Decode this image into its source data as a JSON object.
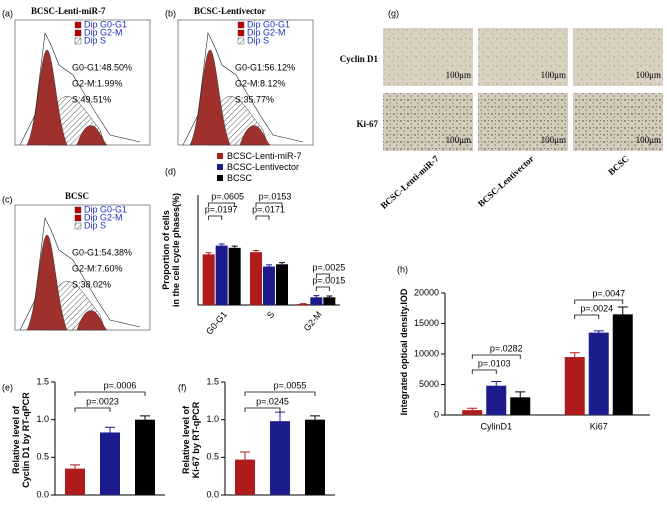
{
  "panels": [
    "(a)",
    "(b)",
    "(c)",
    "(d)",
    "(e)",
    "(f)",
    "(g)",
    "(h)"
  ],
  "histograms": [
    {
      "title": "BCSC-Lenti-miR-7",
      "legend": [
        "Dip G0-G1",
        "Dip G2-M",
        "Dip S"
      ],
      "stats": [
        "G0-G1:48.50%",
        "G2-M:1.99%",
        "S:49.51%"
      ]
    },
    {
      "title": "BCSC-Lentivector",
      "legend": [
        "Dip G0-G1",
        "Dip G2-M",
        "Dip S"
      ],
      "stats": [
        "G0-G1:56.12%",
        "G2-M:8.12%",
        "S:35.77%"
      ]
    },
    {
      "title": "BCSC",
      "legend": [
        "Dip G0-G1",
        "Dip G2-M",
        "Dip S"
      ],
      "stats": [
        "G0-G1:54.38%",
        "G2-M:7.60%",
        "S:38.02%"
      ]
    }
  ],
  "images": {
    "rows": [
      "Cyclin D1",
      "Ki-67"
    ],
    "columns": [
      "BCSC-Lenti-miR-7",
      "BCSC-Lentivector",
      "BCSC"
    ],
    "scale_label": "100μm"
  },
  "chart_data": [
    {
      "type": "bar",
      "ylabel": "Proportion of cells\nin the cell cycle phases(%)",
      "categories": [
        "G0-G1",
        "S",
        "G2-M"
      ],
      "series": [
        {
          "name": "BCSC-Lenti-miR-7",
          "color": "#b01c1c",
          "values": [
            46,
            48,
            1
          ],
          "errors": [
            1.5,
            1.5,
            0.3
          ]
        },
        {
          "name": "BCSC-Lentivector",
          "color": "#1c1c8c",
          "values": [
            54,
            35,
            7
          ],
          "errors": [
            1.5,
            1.5,
            1.5
          ]
        },
        {
          "name": "BCSC",
          "color": "#000000",
          "values": [
            52,
            37,
            7
          ],
          "errors": [
            1.5,
            1.5,
            1.2
          ]
        }
      ],
      "ylim": [
        0,
        100
      ],
      "legend": "top",
      "annotations": [
        "p=.0605",
        "p=.0197",
        "p=.0153",
        "p=.0171",
        "p=.0025",
        "p=.0015"
      ]
    },
    {
      "type": "bar",
      "ylabel": "Relative level of\nCyclin D1 by RT-qPCR",
      "categories": [
        null
      ],
      "series": [
        {
          "name": "BCSC-Lenti-miR-7",
          "color": "#b01c1c",
          "values": [
            0.35
          ],
          "errors": [
            0.05
          ]
        },
        {
          "name": "BCSC-Lentivector",
          "color": "#1c1c8c",
          "values": [
            0.83
          ],
          "errors": [
            0.07
          ]
        },
        {
          "name": "BCSC",
          "color": "#000000",
          "values": [
            1.0
          ],
          "errors": [
            0.05
          ]
        }
      ],
      "ylim": [
        0,
        1.5
      ],
      "yticks": [
        {
          "value": 0,
          "label": "0.0"
        },
        {
          "value": 0.5,
          "label": "0.5"
        },
        {
          "value": 1,
          "label": "1.0"
        },
        {
          "value": 1.5,
          "label": "1.5"
        }
      ],
      "annotations": [
        "p=.0006",
        "p=.0023"
      ]
    },
    {
      "type": "bar",
      "ylabel": "Relative level of\nKi-67 by RT-qPCR",
      "categories": [
        null
      ],
      "series": [
        {
          "name": "BCSC-Lenti-miR-7",
          "color": "#b01c1c",
          "values": [
            0.47
          ],
          "errors": [
            0.1
          ]
        },
        {
          "name": "BCSC-Lentivector",
          "color": "#1c1c8c",
          "values": [
            0.98
          ],
          "errors": [
            0.12
          ]
        },
        {
          "name": "BCSC",
          "color": "#000000",
          "values": [
            1.0
          ],
          "errors": [
            0.05
          ]
        }
      ],
      "ylim": [
        0,
        1.5
      ],
      "yticks": [
        {
          "value": 0,
          "label": "0.0"
        },
        {
          "value": 0.5,
          "label": "0.5"
        },
        {
          "value": 1,
          "label": "1.0"
        },
        {
          "value": 1.5,
          "label": "1.5"
        }
      ],
      "annotations": [
        "p=.0055",
        "p=.0245"
      ]
    },
    {
      "type": "bar",
      "ylabel": "Integrated optical density.IOD",
      "categories": [
        "CylinD1",
        "Ki67"
      ],
      "series": [
        {
          "name": "BCSC-Lenti-miR-7",
          "color": "#b01c1c",
          "values": [
            800,
            9500
          ],
          "errors": [
            300,
            700
          ]
        },
        {
          "name": "BCSC-Lentivector",
          "color": "#1c1c8c",
          "values": [
            4800,
            13500
          ],
          "errors": [
            700,
            300
          ]
        },
        {
          "name": "BCSC",
          "color": "#000000",
          "values": [
            2900,
            16500
          ],
          "errors": [
            900,
            1200
          ]
        }
      ],
      "ylim": [
        0,
        20000
      ],
      "yticks": [
        0,
        5000,
        10000,
        15000,
        20000
      ],
      "annotations": [
        "p=.0282",
        "p=.0103",
        "p=.0047",
        "p=.0024"
      ]
    }
  ]
}
